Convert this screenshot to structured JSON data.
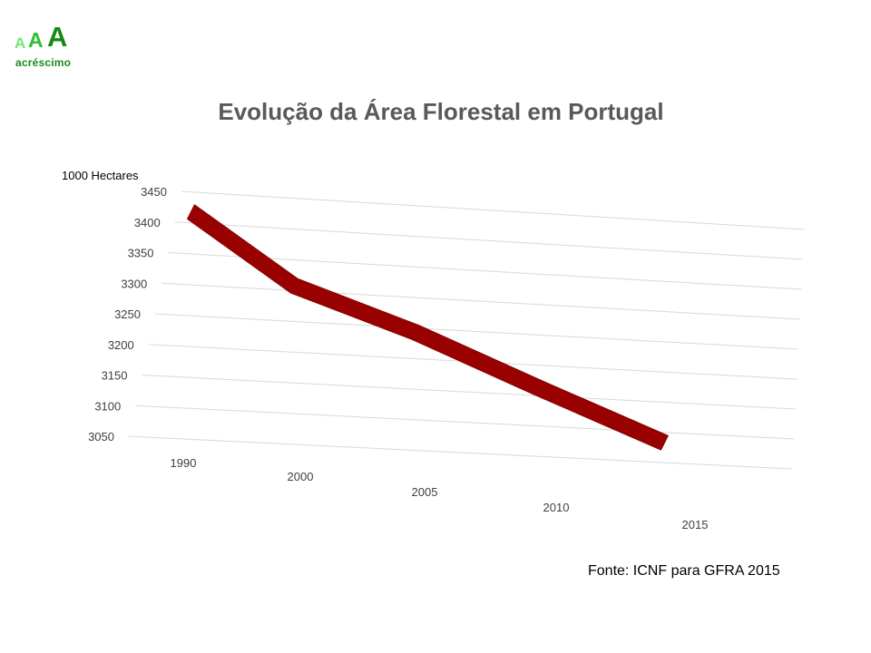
{
  "brand": {
    "logo_letters": [
      "A",
      "A",
      "A"
    ],
    "logo_colors": [
      "#6ee86e",
      "#2fbf2f",
      "#138a13"
    ],
    "name": "acréscimo",
    "name_color": "#1a8a1a"
  },
  "chart_data": {
    "type": "line",
    "title": "Evolução da Área Florestal em Portugal",
    "ylabel": "1000 Hectares",
    "xlabel": "",
    "categories": [
      "1990",
      "2000",
      "2005",
      "2010",
      "2015"
    ],
    "series": [
      {
        "values": [
          3430,
          3320,
          3255,
          3175,
          3095
        ],
        "color": "#990000"
      }
    ],
    "y_ticks": [
      3050,
      3100,
      3150,
      3200,
      3250,
      3300,
      3350,
      3400,
      3450
    ],
    "ylim": [
      3050,
      3450
    ],
    "grid": true,
    "legend": "none",
    "style": "3d-ribbon"
  },
  "source": "Fonte: ICNF para GFRA 2015"
}
